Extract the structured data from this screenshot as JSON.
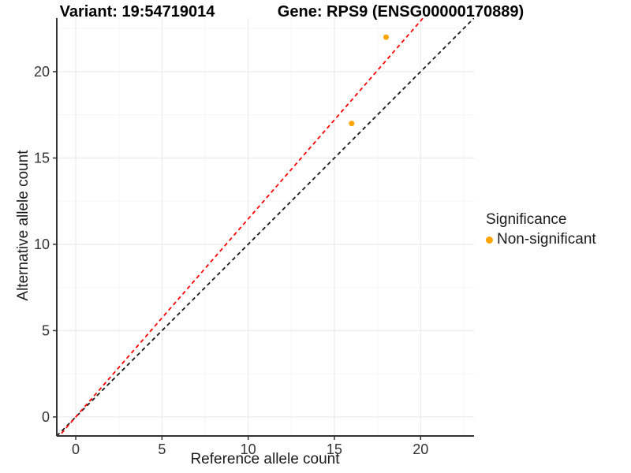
{
  "chart_data": {
    "type": "scatter",
    "title_left": "Variant: 19:54719014",
    "title_right": "Gene: RPS9 (ENSG00000170889)",
    "xlabel": "Reference allele count",
    "ylabel": "Alternative allele count",
    "xlim": [
      -1.1,
      23.1
    ],
    "ylim": [
      -1.1,
      23.1
    ],
    "x_ticks": [
      0,
      5,
      10,
      15,
      20
    ],
    "y_ticks": [
      0,
      5,
      10,
      15,
      20
    ],
    "x_minor": [
      2.5,
      7.5,
      12.5,
      17.5,
      22.5
    ],
    "y_minor": [
      2.5,
      7.5,
      12.5,
      17.5,
      22.5
    ],
    "grid": true,
    "points": [
      {
        "x": 16,
        "y": 17,
        "series": "Non-significant"
      },
      {
        "x": 18,
        "y": 22,
        "series": "Non-significant"
      }
    ],
    "point_color": "#FFA500",
    "point_radius": 3.5,
    "lines": [
      {
        "name": "identity-line",
        "slope": 1.0,
        "intercept": 0,
        "color": "#1a1a1a",
        "style": "dashed"
      },
      {
        "name": "expected-ratio-line",
        "slope": 1.147,
        "intercept": 0,
        "color": "#FF0000",
        "style": "dashed"
      }
    ],
    "colors": {
      "axis_line": "#333333",
      "tick_label": "#333333",
      "grid_major": "#ebebeb",
      "grid_minor": "#f5f5f5",
      "background": "#ffffff"
    },
    "legend": {
      "position": "right",
      "title": "Significance",
      "items": [
        {
          "label": "Non-significant",
          "color": "#FFA500"
        }
      ]
    }
  }
}
